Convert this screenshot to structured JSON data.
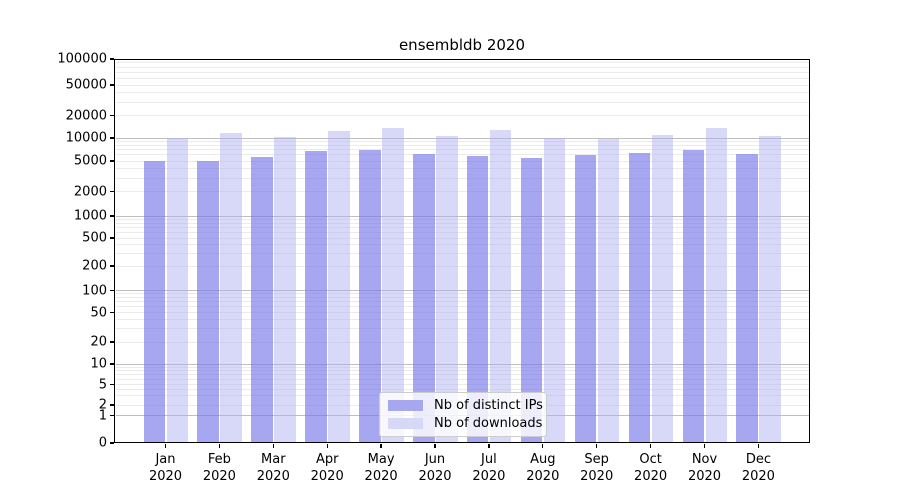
{
  "title": "ensembldb 2020",
  "chart_data": {
    "type": "bar",
    "title": "ensembldb 2020",
    "categories": [
      "Jan 2020",
      "Feb 2020",
      "Mar 2020",
      "Apr 2020",
      "May 2020",
      "Jun 2020",
      "Jul 2020",
      "Aug 2020",
      "Sep 2020",
      "Oct 2020",
      "Nov 2020",
      "Dec 2020"
    ],
    "x_tick_top": [
      "Jan",
      "Feb",
      "Mar",
      "Apr",
      "May",
      "Jun",
      "Jul",
      "Aug",
      "Sep",
      "Oct",
      "Nov",
      "Dec"
    ],
    "x_tick_bottom": "2020",
    "series": [
      {
        "name": "Nb of distinct IPs",
        "color": "#a7a7f0",
        "fill": "rgba(120,120,233,0.65)",
        "values": [
          5000,
          5000,
          5700,
          6700,
          6900,
          6100,
          5900,
          5500,
          6000,
          6400,
          7000,
          6200
        ]
      },
      {
        "name": "Nb of downloads",
        "color": "#d7d7f8",
        "fill": "rgba(173,173,242,0.48)",
        "values": [
          10000,
          11700,
          10400,
          12300,
          13500,
          10500,
          12800,
          10100,
          9600,
          10900,
          13800,
          10800
        ]
      }
    ],
    "yscale": "symlog",
    "ylim": [
      0,
      100000
    ],
    "y_ticks": [
      0,
      1,
      2,
      5,
      10,
      20,
      50,
      100,
      200,
      500,
      1000,
      2000,
      5000,
      10000,
      20000,
      50000,
      100000
    ],
    "grid": "both",
    "legend_position": "lower center",
    "xlabel": "",
    "ylabel": ""
  },
  "colors": {
    "grid_major": "#bfbfbf",
    "grid_minor": "#ebebeb",
    "axis": "#000000",
    "legend_border": "#cccccc"
  }
}
